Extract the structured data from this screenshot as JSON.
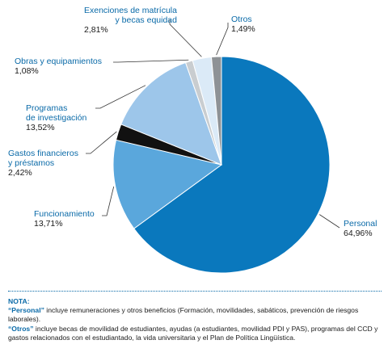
{
  "chart_data": {
    "type": "pie",
    "title": "",
    "slices": [
      {
        "name": "Personal",
        "value": 64.96,
        "pct_label": "64,96%",
        "color": "#0a78bd"
      },
      {
        "name": "Funcionamiento",
        "value": 13.71,
        "pct_label": "13,71%",
        "color": "#5aa7dc"
      },
      {
        "name": "Gastos financieros\ny préstamos",
        "value": 2.42,
        "pct_label": "2,42%",
        "color": "#111111"
      },
      {
        "name": "Programas\nde investigación",
        "value": 13.52,
        "pct_label": "13,52%",
        "color": "#9dc6ea"
      },
      {
        "name": "Obras y equipamientos",
        "value": 1.08,
        "pct_label": "1,08%",
        "color": "#c9cdd0"
      },
      {
        "name": "Exenciones de matrícula\ny becas equidad",
        "value": 2.81,
        "pct_label": "2,81%",
        "color": "#dbeaf7"
      },
      {
        "name": "Otros",
        "value": 1.49,
        "pct_label": "1,49%",
        "color": "#8e9296"
      }
    ],
    "legend": "none"
  },
  "note": {
    "title": "NOTA:",
    "personal_term": "“Personal”",
    "personal_text": " incluye remuneraciones y otros beneficios (Formación, movilidades, sabáticos, prevención de riesgos laborales).",
    "otros_term": "“Otros”",
    "otros_text": " incluye becas de movilidad de estudiantes, ayudas (a estudiantes, movilidad PDI y PAS), programas del CCD y gastos relacionados con el estudiantado, la vida universitaria y el Plan de Política Lingüística."
  }
}
